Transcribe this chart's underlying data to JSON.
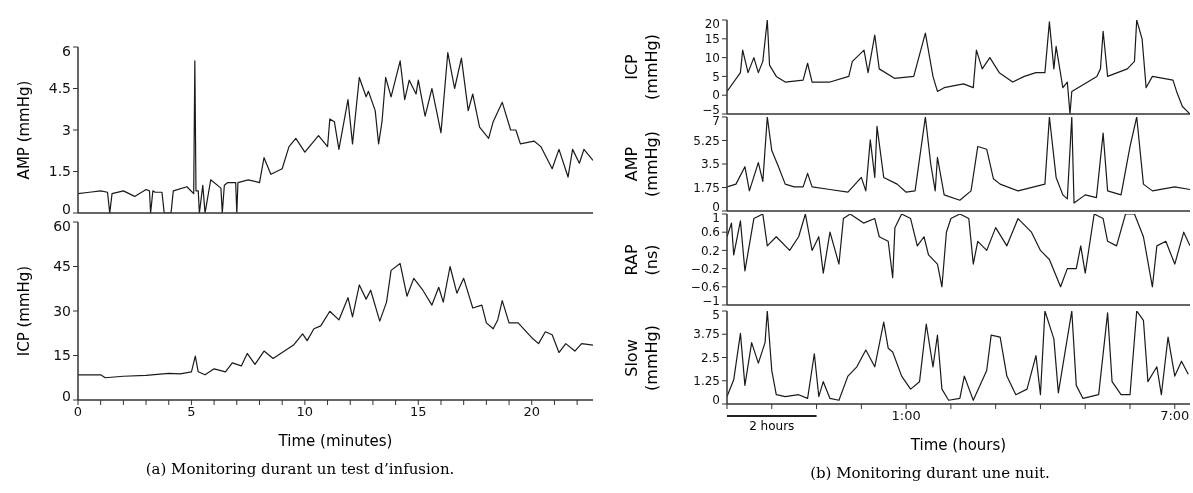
{
  "chart_data": [
    {
      "type": "line",
      "ylabel": "AMP (mmHg)",
      "xlim": [
        0,
        22.7
      ],
      "ylim": [
        0,
        6
      ],
      "yticks": [
        0,
        1.5,
        3,
        4.5,
        6
      ],
      "tick_labels": "y",
      "marker": "none",
      "line_style": "solid",
      "color": "#1a1a1a",
      "x": [
        0,
        0.5,
        1.0,
        1.3,
        1.4,
        1.5,
        2.0,
        2.5,
        3.0,
        3.15,
        3.2,
        3.3,
        3.4,
        3.7,
        3.8,
        4.1,
        4.2,
        4.8,
        5.1,
        5.15,
        5.2,
        5.3,
        5.35,
        5.5,
        5.6,
        5.85,
        6.3,
        6.36,
        6.45,
        6.6,
        6.95,
        7.0,
        7.05,
        7.5,
        8.0,
        8.2,
        8.5,
        9.0,
        9.3,
        9.6,
        10.0,
        10.6,
        11.0,
        11.1,
        11.3,
        11.5,
        11.9,
        12.1,
        12.4,
        12.7,
        12.8,
        13.1,
        13.25,
        13.4,
        13.56,
        13.8,
        14.2,
        14.4,
        14.6,
        14.9,
        15.0,
        15.3,
        15.6,
        15.8,
        16.0,
        16.3,
        16.6,
        16.9,
        17.2,
        17.4,
        17.7,
        18.1,
        18.3,
        18.7,
        19.07,
        19.3,
        19.5,
        20.1,
        20.4,
        20.9,
        21.2,
        21.6,
        21.8,
        22.1,
        22.3,
        22.7
      ],
      "values": [
        0.7,
        0.75,
        0.8,
        0.75,
        0,
        0.7,
        0.8,
        0.6,
        0.85,
        0.8,
        0,
        0.8,
        0.75,
        0.75,
        0,
        0,
        0.8,
        0.95,
        0.7,
        5.5,
        0.8,
        0.8,
        0,
        1.0,
        0,
        1.2,
        0.9,
        0,
        1.0,
        1.1,
        1.1,
        0,
        1.1,
        1.2,
        1.1,
        2.0,
        1.4,
        1.6,
        2.4,
        2.7,
        2.2,
        2.8,
        2.4,
        3.4,
        3.3,
        2.3,
        4.1,
        2.5,
        4.9,
        4.2,
        4.4,
        3.7,
        2.5,
        3.3,
        4.9,
        4.2,
        5.5,
        4.1,
        4.8,
        4.3,
        4.8,
        3.5,
        4.5,
        3.7,
        2.9,
        5.8,
        4.5,
        5.6,
        3.7,
        4.3,
        3.1,
        2.7,
        3.3,
        4.0,
        3.0,
        3.0,
        2.5,
        2.6,
        2.4,
        1.6,
        2.3,
        1.3,
        2.3,
        1.8,
        2.3,
        1.9
      ]
    },
    {
      "type": "line",
      "ylabel": "ICP (mmHg)",
      "xlabel": "Time (minutes)",
      "xlim": [
        0,
        22.7
      ],
      "xticks": [
        0,
        {
          "value": 1,
          "label": null
        },
        {
          "value": 2,
          "label": null
        },
        {
          "value": 3,
          "label": null
        },
        {
          "value": 4,
          "label": null
        },
        5,
        {
          "value": 6,
          "label": null
        },
        {
          "value": 7,
          "label": null
        },
        {
          "value": 8,
          "label": null
        },
        {
          "value": 9,
          "label": null
        },
        10,
        {
          "value": 11,
          "label": null
        },
        {
          "value": 12,
          "label": null
        },
        {
          "value": 13,
          "label": null
        },
        {
          "value": 14,
          "label": null
        },
        15,
        {
          "value": 16,
          "label": null
        },
        {
          "value": 17,
          "label": null
        },
        {
          "value": 18,
          "label": null
        },
        {
          "value": 19,
          "label": null
        },
        20,
        {
          "value": 21,
          "label": null
        },
        {
          "value": 22,
          "label": null
        }
      ],
      "ylim": [
        0,
        60
      ],
      "yticks": [
        0,
        15,
        30,
        45,
        60
      ],
      "marker": "none",
      "line_style": "solid",
      "color": "#1a1a1a",
      "annotations": [
        "(a) Monitoring durant un test d’infusion."
      ],
      "x": [
        0,
        1,
        1.2,
        2,
        3,
        4,
        4.5,
        5,
        5.17,
        5.3,
        5.6,
        6,
        6.5,
        6.8,
        7.2,
        7.46,
        7.8,
        8.2,
        8.6,
        9.2,
        9.5,
        9.9,
        10.1,
        10.4,
        10.7,
        11.1,
        11.5,
        11.9,
        12.1,
        12.4,
        12.7,
        12.9,
        13.3,
        13.6,
        13.8,
        14.2,
        14.5,
        14.8,
        15.2,
        15.6,
        15.9,
        16.1,
        16.4,
        16.7,
        17.0,
        17.4,
        17.8,
        18.0,
        18.3,
        18.5,
        18.7,
        19.0,
        19.4,
        20.0,
        20.3,
        20.6,
        20.9,
        21.2,
        21.5,
        21.9,
        22.2,
        22.7
      ],
      "values": [
        8.5,
        8.5,
        7.5,
        8,
        8.3,
        9,
        8.8,
        9.5,
        14.8,
        9.5,
        8.5,
        10.5,
        9.5,
        12.5,
        11.5,
        15.7,
        12,
        16.5,
        14,
        17,
        18.5,
        22.3,
        20,
        24,
        25,
        29.9,
        27,
        34.5,
        28,
        38.8,
        34,
        37,
        26.6,
        33,
        43.7,
        46,
        35,
        41,
        37,
        32,
        38,
        33,
        45,
        36,
        41,
        31,
        32,
        26,
        24,
        27,
        33.5,
        26,
        26,
        21,
        19,
        23,
        22,
        16,
        19,
        16.5,
        19,
        18.5
      ]
    },
    {
      "type": "line",
      "ylabel": "ICP (mmHg)",
      "xlim": [
        -3,
        7.34
      ],
      "ylim": [
        -5,
        20
      ],
      "yticks": [
        {
          "value": -5,
          "label": "−5"
        },
        0,
        5,
        10,
        15,
        20
      ],
      "tick_labels": "y",
      "marker": "none",
      "line_style": "solid",
      "color": "#1a1a1a",
      "x": [
        -3,
        -2.7,
        -2.65,
        -2.53,
        -2.4,
        -2.3,
        -2.2,
        -2.1,
        -2.05,
        -1.9,
        -1.7,
        -1.3,
        -1.2,
        -1.1,
        -0.7,
        -0.28,
        -0.2,
        0.06,
        0.15,
        0.3,
        0.4,
        0.74,
        1.17,
        1.43,
        1.6,
        1.7,
        1.85,
        2.28,
        2.5,
        2.57,
        2.7,
        2.87,
        3.08,
        3.38,
        3.64,
        3.9,
        4.1,
        4.2,
        4.3,
        4.35,
        4.5,
        4.6,
        4.66,
        4.7,
        5.26,
        5.34,
        5.4,
        5.5,
        5.94,
        6.1,
        6.15,
        6.27,
        6.36,
        6.5,
        6.96,
        7.04,
        7.17,
        7.34
      ],
      "values": [
        1,
        6,
        12,
        6,
        10,
        6,
        9,
        20,
        8,
        5,
        3.5,
        4,
        8.5,
        3.5,
        3.5,
        5,
        9,
        12,
        6,
        16,
        7,
        4.5,
        5,
        16.5,
        5,
        1,
        2,
        3,
        2,
        12,
        7,
        10,
        6,
        3.5,
        5,
        6,
        6,
        19.5,
        7,
        13,
        2,
        3.5,
        -5,
        1,
        5,
        7,
        17,
        5,
        7,
        9,
        20,
        15,
        2,
        5,
        4,
        1,
        -3,
        -5
      ]
    },
    {
      "type": "line",
      "ylabel": "AMP (mmHg)",
      "xlim": [
        -3,
        7.34
      ],
      "ylim": [
        0,
        7
      ],
      "yticks": [
        0,
        1.75,
        3.5,
        5.25,
        7
      ],
      "tick_labels": "y",
      "marker": "none",
      "line_style": "solid",
      "color": "#1a1a1a",
      "x": [
        -3,
        -2.8,
        -2.6,
        -2.5,
        -2.3,
        -2.2,
        -2.1,
        -2.0,
        -1.85,
        -1.7,
        -1.5,
        -1.3,
        -1.2,
        -1.1,
        -0.7,
        -0.3,
        0.0,
        0.1,
        0.2,
        0.3,
        0.35,
        0.5,
        0.8,
        1.0,
        1.2,
        1.43,
        1.55,
        1.65,
        1.7,
        1.85,
        2.2,
        2.45,
        2.6,
        2.8,
        2.95,
        3.1,
        3.5,
        4.1,
        4.2,
        4.35,
        4.5,
        4.6,
        4.7,
        4.75,
        5.0,
        5.25,
        5.4,
        5.5,
        5.8,
        6.0,
        6.15,
        6.3,
        6.5,
        7.0,
        7.34
      ],
      "values": [
        1.8,
        2.0,
        3.3,
        1.5,
        3.6,
        2.2,
        7,
        4.5,
        3.3,
        2.0,
        1.8,
        1.8,
        2.8,
        1.8,
        1.6,
        1.4,
        2.5,
        1.5,
        5.3,
        2.5,
        6.3,
        2.5,
        2.0,
        1.4,
        1.5,
        7,
        3.5,
        1.5,
        4.0,
        1.2,
        0.8,
        1.5,
        4.8,
        4.6,
        2.4,
        2.0,
        1.5,
        2.0,
        7,
        2.5,
        1.2,
        0.9,
        7,
        0.6,
        1.2,
        1.0,
        5.8,
        1.5,
        1.2,
        4.8,
        7,
        2.0,
        1.5,
        1.8,
        1.6
      ]
    },
    {
      "type": "line",
      "ylabel": "RAP (ns)",
      "xlim": [
        -3,
        7.34
      ],
      "ylim": [
        -1,
        1
      ],
      "yticks": [
        {
          "value": -1,
          "label": "−1"
        },
        {
          "value": -0.6,
          "label": "−0.6"
        },
        {
          "value": -0.2,
          "label": "−0.2"
        },
        0.2,
        0.6,
        1
      ],
      "tick_labels": "y",
      "marker": "none",
      "line_style": "solid",
      "color": "#1a1a1a",
      "x": [
        -3,
        -2.9,
        -2.85,
        -2.7,
        -2.6,
        -2.4,
        -2.2,
        -2.1,
        -1.9,
        -1.6,
        -1.4,
        -1.25,
        -1.1,
        -0.95,
        -0.85,
        -0.7,
        -0.5,
        -0.4,
        -0.25,
        0.05,
        0.3,
        0.4,
        0.6,
        0.7,
        0.75,
        0.9,
        1.1,
        1.25,
        1.4,
        1.5,
        1.7,
        1.8,
        1.9,
        2.0,
        2.2,
        2.4,
        2.5,
        2.6,
        2.8,
        3.0,
        3.25,
        3.5,
        3.8,
        4.0,
        4.2,
        4.45,
        4.6,
        4.8,
        4.9,
        5.0,
        5.2,
        5.4,
        5.5,
        5.7,
        5.9,
        6.1,
        6.3,
        6.5,
        6.6,
        6.8,
        7.0,
        7.2,
        7.34
      ],
      "values": [
        0.5,
        0.8,
        0.1,
        0.85,
        -0.25,
        0.9,
        1.0,
        0.3,
        0.5,
        0.2,
        0.5,
        1.0,
        0.2,
        0.5,
        -0.3,
        0.6,
        -0.1,
        0.9,
        1.0,
        0.8,
        0.9,
        0.5,
        0.4,
        -0.4,
        0.7,
        1.0,
        0.9,
        0.3,
        0.5,
        0.1,
        -0.1,
        -0.6,
        0.6,
        0.9,
        1.0,
        0.9,
        -0.1,
        0.4,
        0.2,
        0.7,
        0.3,
        0.9,
        0.6,
        0.2,
        0.0,
        -0.6,
        -0.2,
        -0.2,
        0.3,
        -0.3,
        1.0,
        0.9,
        0.4,
        0.3,
        1.0,
        1.0,
        0.5,
        -0.6,
        0.3,
        0.4,
        -0.1,
        0.6,
        0.3
      ]
    },
    {
      "type": "line",
      "ylabel": "Slow (mmHg)",
      "xlabel": "Time (hours)",
      "xlim": [
        -3,
        7.34
      ],
      "xticks": [
        {
          "value": -3,
          "label": null
        },
        {
          "value": -2,
          "label": null
        },
        {
          "value": -1,
          "label": null
        },
        {
          "value": 0,
          "label": null
        },
        {
          "value": 1,
          "label": "1:00"
        },
        {
          "value": 2,
          "label": null
        },
        {
          "value": 3,
          "label": null
        },
        {
          "value": 4,
          "label": null
        },
        {
          "value": 5,
          "label": null
        },
        {
          "value": 6,
          "label": null
        },
        {
          "value": 7,
          "label": "7:00"
        }
      ],
      "ylim": [
        0,
        5
      ],
      "yticks": [
        0,
        1.25,
        2.5,
        3.75,
        5
      ],
      "marker": "none",
      "line_style": "solid",
      "color": "#1a1a1a",
      "annotations": [
        "2 hours",
        "(b) Monitoring durant une nuit."
      ],
      "x": [
        -3,
        -2.85,
        -2.7,
        -2.6,
        -2.45,
        -2.3,
        -2.15,
        -2.1,
        -2.0,
        -1.9,
        -1.7,
        -1.4,
        -1.2,
        -1.05,
        -0.95,
        -0.85,
        -0.7,
        -0.5,
        -0.3,
        -0.1,
        0.1,
        0.3,
        0.5,
        0.6,
        0.7,
        0.9,
        1.1,
        1.3,
        1.45,
        1.6,
        1.7,
        1.8,
        1.95,
        2.2,
        2.3,
        2.5,
        2.8,
        2.9,
        3.1,
        3.25,
        3.45,
        3.7,
        3.9,
        4.0,
        4.1,
        4.3,
        4.4,
        4.7,
        4.8,
        4.95,
        5.3,
        5.5,
        5.6,
        5.8,
        6.0,
        6.15,
        6.3,
        6.4,
        6.6,
        6.7,
        6.85,
        7.0,
        7.15,
        7.3
      ],
      "values": [
        0.4,
        1.3,
        3.8,
        1.0,
        3.3,
        2.2,
        3.3,
        5,
        1.8,
        0.5,
        0.4,
        0.5,
        0.3,
        2.7,
        0.4,
        1.2,
        0.3,
        0.2,
        1.5,
        2.0,
        2.9,
        2.0,
        4.4,
        3.0,
        2.8,
        1.5,
        0.8,
        1.2,
        4.3,
        2.0,
        3.7,
        0.8,
        0.2,
        0.3,
        1.5,
        0.2,
        1.8,
        3.7,
        3.6,
        1.5,
        0.5,
        0.8,
        2.6,
        0.5,
        5,
        3.5,
        0.6,
        5,
        1.0,
        0.3,
        0.5,
        4.9,
        1.2,
        0.5,
        0.5,
        5,
        4.5,
        1.2,
        2.0,
        0.5,
        3.6,
        1.5,
        2.3,
        1.6
      ]
    }
  ]
}
